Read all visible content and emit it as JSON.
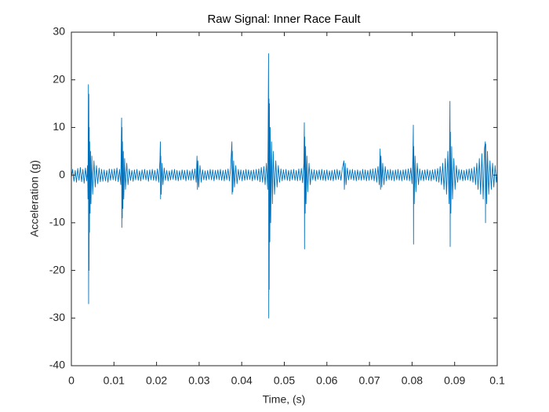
{
  "chart_data": {
    "type": "line",
    "title": "Raw Signal: Inner Race Fault",
    "x_label": "Time, (s)",
    "y_label": "Acceleration (g)",
    "color": "#0072bd",
    "xlim": [
      0,
      0.1
    ],
    "ylim": [
      -40,
      30
    ],
    "xticks": [
      0,
      0.01,
      0.02,
      0.03,
      0.04,
      0.05,
      0.06,
      0.07,
      0.08,
      0.09,
      0.1
    ],
    "yticks": [
      -40,
      -30,
      -20,
      -10,
      0,
      10,
      20,
      30
    ],
    "x": [
      0,
      0.0003,
      0.0006,
      0.0009,
      0.0012,
      0.0015,
      0.0018,
      0.0021,
      0.0024,
      0.0027,
      0.003,
      0.0033,
      0.0036,
      0.0038,
      0.0039,
      0.004,
      0.00405,
      0.0041,
      0.00415,
      0.0042,
      0.00425,
      0.0043,
      0.0044,
      0.0045,
      0.0046,
      0.0048,
      0.005,
      0.0053,
      0.0056,
      0.0059,
      0.0062,
      0.0065,
      0.0068,
      0.0071,
      0.0074,
      0.0077,
      0.008,
      0.0083,
      0.0086,
      0.0089,
      0.0092,
      0.0095,
      0.0098,
      0.0101,
      0.0104,
      0.0107,
      0.011,
      0.0113,
      0.0116,
      0.0118,
      0.01185,
      0.0119,
      0.01195,
      0.012,
      0.0121,
      0.0122,
      0.0123,
      0.0125,
      0.0127,
      0.013,
      0.0133,
      0.0136,
      0.0139,
      0.0142,
      0.0145,
      0.0148,
      0.0151,
      0.0154,
      0.0157,
      0.016,
      0.0163,
      0.0166,
      0.0169,
      0.0172,
      0.0175,
      0.0178,
      0.0181,
      0.0184,
      0.0187,
      0.019,
      0.0193,
      0.0196,
      0.0199,
      0.0202,
      0.0205,
      0.0208,
      0.0209,
      0.02095,
      0.021,
      0.0211,
      0.0213,
      0.0215,
      0.0218,
      0.0221,
      0.0224,
      0.0227,
      0.023,
      0.0233,
      0.0236,
      0.0239,
      0.0242,
      0.0245,
      0.0248,
      0.0251,
      0.0254,
      0.0257,
      0.026,
      0.0263,
      0.0266,
      0.0269,
      0.0272,
      0.0275,
      0.0278,
      0.0281,
      0.0284,
      0.0287,
      0.029,
      0.0293,
      0.0295,
      0.0296,
      0.0297,
      0.0299,
      0.0302,
      0.0305,
      0.0308,
      0.0311,
      0.0314,
      0.0317,
      0.032,
      0.0323,
      0.0326,
      0.0329,
      0.0332,
      0.0335,
      0.0338,
      0.0341,
      0.0344,
      0.0347,
      0.035,
      0.0353,
      0.0356,
      0.0359,
      0.0362,
      0.0365,
      0.0368,
      0.0371,
      0.0374,
      0.0377,
      0.03775,
      0.0378,
      0.0379,
      0.0381,
      0.0383,
      0.0386,
      0.0389,
      0.0392,
      0.0395,
      0.0398,
      0.0401,
      0.0404,
      0.0407,
      0.041,
      0.0413,
      0.0416,
      0.0419,
      0.0422,
      0.0425,
      0.0428,
      0.0431,
      0.0434,
      0.0437,
      0.044,
      0.0443,
      0.0446,
      0.0449,
      0.0452,
      0.0455,
      0.0458,
      0.0461,
      0.0462,
      0.0463,
      0.04635,
      0.0464,
      0.04645,
      0.0465,
      0.0466,
      0.0467,
      0.0468,
      0.047,
      0.0472,
      0.0474,
      0.0477,
      0.048,
      0.0483,
      0.0486,
      0.0489,
      0.0492,
      0.0495,
      0.0498,
      0.0501,
      0.0504,
      0.0507,
      0.051,
      0.0513,
      0.0516,
      0.0519,
      0.0522,
      0.0525,
      0.0528,
      0.0531,
      0.0534,
      0.0537,
      0.054,
      0.0543,
      0.0546,
      0.0547,
      0.05475,
      0.0548,
      0.0549,
      0.055,
      0.0551,
      0.0553,
      0.0555,
      0.0558,
      0.0561,
      0.0564,
      0.0567,
      0.057,
      0.0573,
      0.0576,
      0.0579,
      0.0582,
      0.0585,
      0.0588,
      0.0591,
      0.0594,
      0.0597,
      0.06,
      0.0603,
      0.0606,
      0.0609,
      0.0612,
      0.0615,
      0.0618,
      0.0621,
      0.0624,
      0.0627,
      0.063,
      0.0633,
      0.0636,
      0.064,
      0.0641,
      0.0643,
      0.0645,
      0.0648,
      0.0651,
      0.0654,
      0.0657,
      0.066,
      0.0663,
      0.0666,
      0.0669,
      0.0672,
      0.0675,
      0.0678,
      0.0681,
      0.0684,
      0.0687,
      0.069,
      0.0693,
      0.0696,
      0.0699,
      0.0702,
      0.0705,
      0.0708,
      0.0711,
      0.0714,
      0.0717,
      0.072,
      0.0723,
      0.0725,
      0.0726,
      0.0727,
      0.0729,
      0.0731,
      0.0734,
      0.0737,
      0.074,
      0.0743,
      0.0746,
      0.0749,
      0.0752,
      0.0755,
      0.0758,
      0.0761,
      0.0764,
      0.0767,
      0.077,
      0.0773,
      0.0776,
      0.0779,
      0.0782,
      0.0785,
      0.0788,
      0.0791,
      0.0794,
      0.0797,
      0.08,
      0.0802,
      0.0803,
      0.08035,
      0.0804,
      0.0805,
      0.0807,
      0.0809,
      0.0812,
      0.0815,
      0.0818,
      0.0821,
      0.0824,
      0.0827,
      0.083,
      0.0833,
      0.0836,
      0.0839,
      0.0842,
      0.0845,
      0.0848,
      0.0851,
      0.0854,
      0.0857,
      0.086,
      0.0863,
      0.0866,
      0.0869,
      0.0872,
      0.0875,
      0.0878,
      0.0881,
      0.0884,
      0.0887,
      0.0889,
      0.08895,
      0.089,
      0.0891,
      0.0893,
      0.0895,
      0.0898,
      0.0901,
      0.0904,
      0.0907,
      0.091,
      0.0913,
      0.0916,
      0.0919,
      0.0922,
      0.0925,
      0.0928,
      0.0931,
      0.0934,
      0.0937,
      0.094,
      0.0943,
      0.0946,
      0.0949,
      0.0952,
      0.0955,
      0.0958,
      0.0961,
      0.0964,
      0.0967,
      0.097,
      0.0972,
      0.09725,
      0.0973,
      0.0975,
      0.0977,
      0.098,
      0.0983,
      0.0986,
      0.0989,
      0.0992,
      0.0995,
      0.0998,
      0.1
    ],
    "values": [
      -0.5,
      1.2,
      -1.3,
      1,
      -1.5,
      1.4,
      -1.1,
      1.6,
      -1.4,
      1.2,
      -1.7,
      1.5,
      -1.2,
      2,
      -5,
      19,
      -27,
      17,
      -20,
      10,
      -12,
      7,
      -8,
      5,
      -6,
      4,
      -4,
      3,
      -2.5,
      2,
      -1.8,
      1.5,
      -1.4,
      1.2,
      -1.3,
      1.1,
      -1.2,
      1,
      -1.5,
      1.3,
      -1.1,
      1.2,
      -1,
      1.3,
      -1.2,
      1.5,
      -1.4,
      1.2,
      -2,
      12,
      -11,
      10,
      -9,
      7,
      -7,
      5,
      -5,
      3.5,
      -3,
      2.5,
      -2,
      1.3,
      -1.1,
      1,
      -1.3,
      1.1,
      -1,
      1.2,
      -1.1,
      0.9,
      -1.2,
      1.1,
      -0.9,
      1.2,
      -1,
      1,
      -1.3,
      1.1,
      -1,
      1.2,
      -1.1,
      1,
      -1.2,
      1.3,
      -1.5,
      3,
      7,
      -5,
      4,
      -4,
      2.5,
      -2,
      1.5,
      -1.1,
      1,
      -1.2,
      0.9,
      -1,
      1.1,
      -0.9,
      1.2,
      -1.1,
      1,
      -1.2,
      0.9,
      -1,
      1.1,
      -0.9,
      1,
      -1.2,
      1.1,
      -1,
      0.9,
      -1.1,
      1.2,
      -1,
      1.3,
      -1.5,
      4,
      -3,
      3,
      -2.5,
      2,
      -1.5,
      1.1,
      -1,
      0.9,
      -1.1,
      1,
      -0.9,
      1.2,
      -1,
      1.1,
      -1.2,
      1,
      -0.9,
      1.1,
      -1,
      1.2,
      -1.1,
      1,
      -1.2,
      1.1,
      -1,
      1.3,
      -1.2,
      1.5,
      7,
      -4,
      5,
      -3.5,
      3,
      -2.5,
      2,
      -1.8,
      1.2,
      -1,
      1.1,
      -1.2,
      1,
      -1.1,
      1.2,
      -1,
      1.1,
      -0.9,
      1,
      -1.2,
      1.1,
      -1,
      1.2,
      -1.1,
      1.3,
      -1.4,
      1.6,
      -1.5,
      1.8,
      -2,
      2.5,
      -3,
      8,
      25.5,
      -30,
      16,
      -24,
      15,
      -14,
      10,
      -10,
      7,
      -6,
      5,
      -4,
      3,
      -2.5,
      2,
      -1.5,
      1.3,
      -1.2,
      1.1,
      -1,
      1.2,
      -1.1,
      1,
      -1.2,
      1.1,
      -1,
      1.2,
      -1.1,
      1,
      -1.2,
      1.3,
      -1.1,
      1.4,
      -1.6,
      2.5,
      11,
      -15.5,
      8,
      -8,
      6,
      -6,
      4,
      -3.5,
      2.5,
      -2,
      1.2,
      -1,
      1.1,
      -1.2,
      1,
      -0.9,
      1.1,
      -1,
      1.2,
      -1.1,
      1,
      -1.2,
      1.1,
      -1,
      0.9,
      -1.1,
      1,
      -1.2,
      1.1,
      -1,
      1.2,
      -0.9,
      1,
      -1.1,
      1.3,
      3,
      -3,
      2.5,
      -2,
      1.5,
      -1,
      1.1,
      -0.9,
      1.2,
      -1.1,
      1,
      -1.2,
      1.1,
      -1,
      0.9,
      -1.1,
      1.2,
      -1,
      1.1,
      -1.2,
      1,
      -1.1,
      1.2,
      -1,
      1.3,
      -1.2,
      1.4,
      -1.5,
      1.8,
      -2,
      5.5,
      -3,
      4,
      -2.5,
      2.5,
      -2,
      1.8,
      -1.2,
      1.1,
      -1,
      1.2,
      -1.1,
      1,
      -1.2,
      1.1,
      -1,
      1.2,
      -1.1,
      1,
      -1.2,
      1.1,
      -1,
      1.2,
      -1.1,
      1.3,
      -1.2,
      1.5,
      -1.8,
      4,
      10.5,
      -14.5,
      6,
      -6,
      4,
      -3.5,
      2.5,
      -2,
      1.3,
      -1.1,
      1,
      -1.2,
      1.1,
      -1,
      1.2,
      -1.1,
      1,
      -1.2,
      1.1,
      -1,
      1.2,
      -1.3,
      1.4,
      -1.5,
      1.8,
      -2,
      2.5,
      -3,
      3.5,
      -4,
      5,
      -6,
      15.5,
      -15,
      9,
      -8,
      6,
      -5,
      3.5,
      -3,
      2,
      -1.5,
      1.2,
      -1,
      1.1,
      -1.2,
      1,
      -1.1,
      1.2,
      -1,
      1.3,
      -1.2,
      1.4,
      -1.5,
      1.7,
      -2,
      2.5,
      -3,
      3.5,
      -4,
      4.5,
      -5,
      5.5,
      7,
      -10,
      6.5,
      -6,
      5,
      -4,
      3,
      -3,
      2.5,
      -2.5,
      2,
      -1.5,
      0.5
    ]
  }
}
